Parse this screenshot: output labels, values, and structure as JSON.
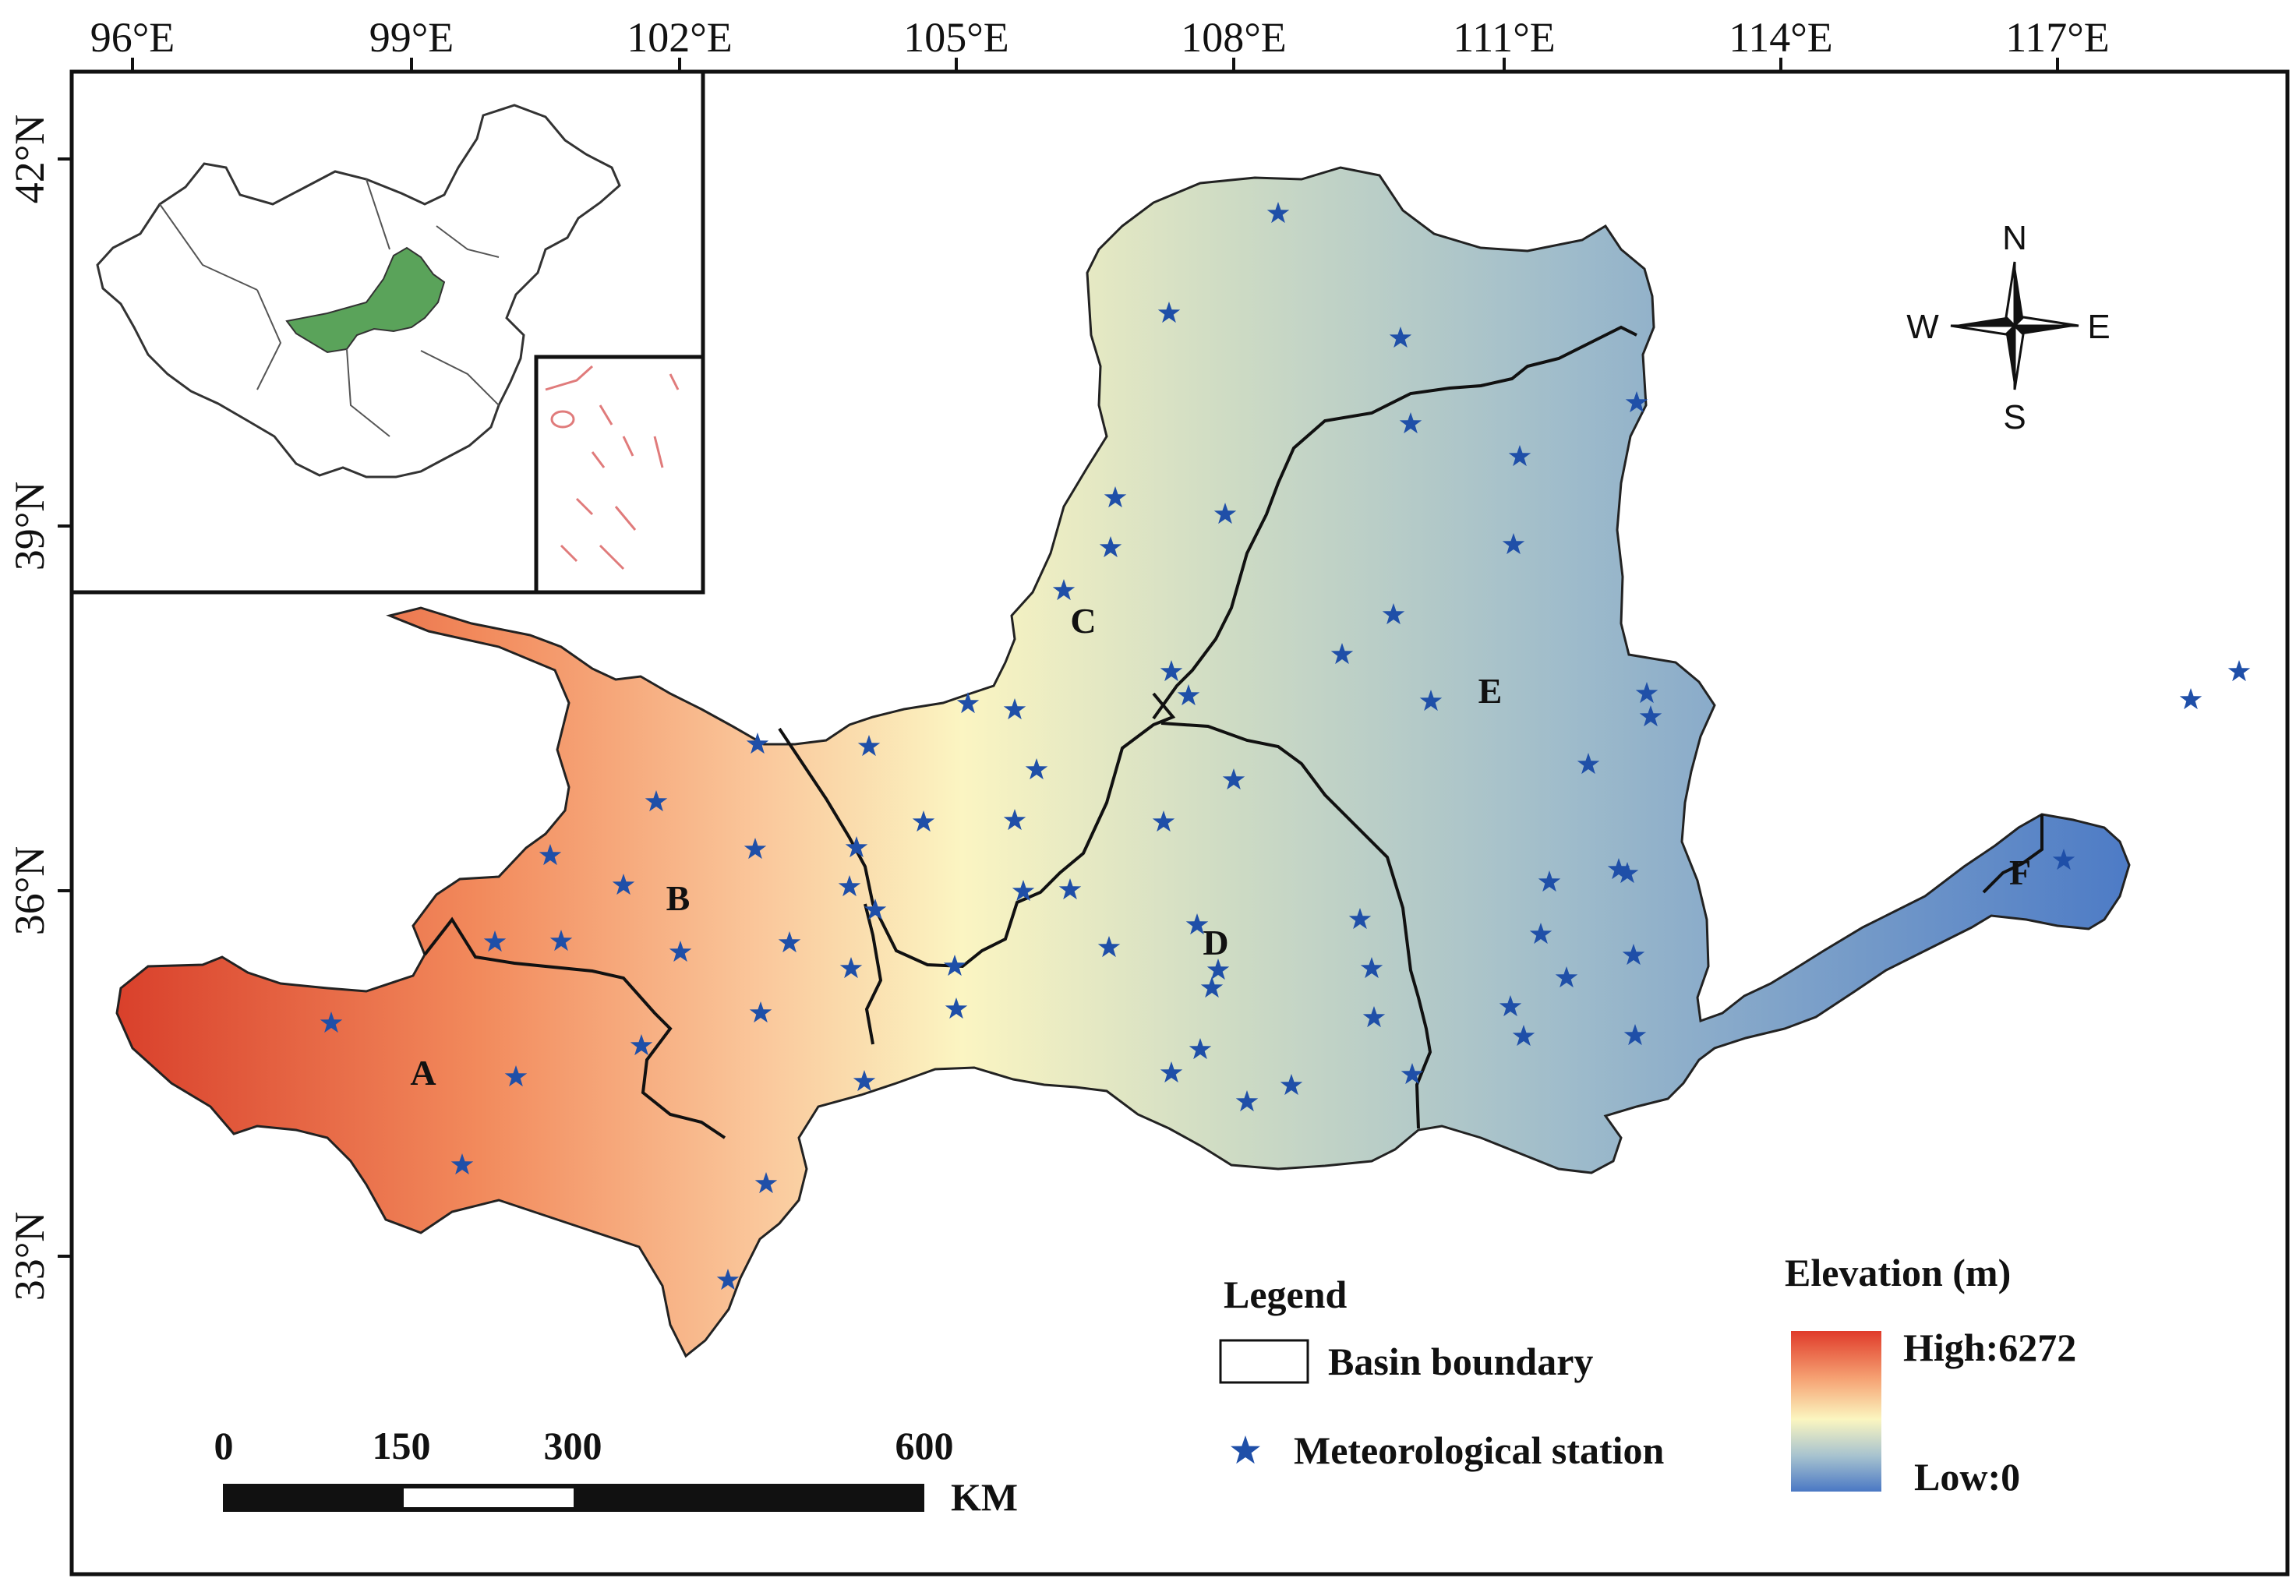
{
  "map": {
    "top_ticks": [
      "96°E",
      "99°E",
      "102°E",
      "105°E",
      "108°E",
      "111°E",
      "114°E",
      "117°E"
    ],
    "left_ticks": [
      "42°N",
      "39°N",
      "36°N",
      "33°N"
    ],
    "regions": [
      "A",
      "B",
      "C",
      "D",
      "E",
      "F"
    ],
    "compass": {
      "n": "N",
      "s": "S",
      "e": "E",
      "w": "W"
    },
    "legend": {
      "title": "Legend",
      "boundary_label": "Basin boundary",
      "station_label": "Meteorological station"
    },
    "elevation": {
      "title": "Elevation (m)",
      "high_label": "High:6272",
      "low_label": "Low:0",
      "high_value": 6272,
      "low_value": 0,
      "colors": [
        "#e03b2a",
        "#f7a070",
        "#fbf6c0",
        "#a6c2cf",
        "#4a78c4"
      ]
    },
    "scale": {
      "labels": [
        "0",
        "150",
        "300",
        "600"
      ],
      "unit": "KM"
    },
    "stations": [
      [
        1640,
        274
      ],
      [
        1500,
        402
      ],
      [
        1797,
        434
      ],
      [
        2100,
        517
      ],
      [
        1810,
        544
      ],
      [
        1431,
        639
      ],
      [
        1572,
        660
      ],
      [
        1425,
        703
      ],
      [
        1365,
        758
      ],
      [
        1950,
        586
      ],
      [
        1942,
        699
      ],
      [
        1788,
        789
      ],
      [
        1722,
        840
      ],
      [
        1503,
        862
      ],
      [
        1525,
        893
      ],
      [
        1242,
        903
      ],
      [
        1302,
        911
      ],
      [
        1836,
        900
      ],
      [
        2113,
        890
      ],
      [
        2118,
        920
      ],
      [
        972,
        955
      ],
      [
        1115,
        958
      ],
      [
        1330,
        988
      ],
      [
        1583,
        1001
      ],
      [
        2038,
        981
      ],
      [
        1302,
        1053
      ],
      [
        842,
        1029
      ],
      [
        1185,
        1055
      ],
      [
        969,
        1090
      ],
      [
        1099,
        1088
      ],
      [
        1493,
        1055
      ],
      [
        1090,
        1138
      ],
      [
        706,
        1098
      ],
      [
        800,
        1136
      ],
      [
        1313,
        1144
      ],
      [
        1373,
        1142
      ],
      [
        2088,
        1121
      ],
      [
        1988,
        1132
      ],
      [
        2077,
        1116
      ],
      [
        1123,
        1168
      ],
      [
        1745,
        1180
      ],
      [
        1536,
        1187
      ],
      [
        1977,
        1199
      ],
      [
        635,
        1209
      ],
      [
        720,
        1208
      ],
      [
        873,
        1222
      ],
      [
        1013,
        1210
      ],
      [
        1092,
        1243
      ],
      [
        1563,
        1245
      ],
      [
        1423,
        1216
      ],
      [
        1760,
        1243
      ],
      [
        2010,
        1255
      ],
      [
        2096,
        1226
      ],
      [
        1555,
        1268
      ],
      [
        976,
        1300
      ],
      [
        1225,
        1240
      ],
      [
        1938,
        1292
      ],
      [
        1763,
        1306
      ],
      [
        2098,
        1329
      ],
      [
        1227,
        1295
      ],
      [
        1955,
        1330
      ],
      [
        425,
        1313
      ],
      [
        823,
        1342
      ],
      [
        1540,
        1347
      ],
      [
        1503,
        1377
      ],
      [
        1657,
        1393
      ],
      [
        1600,
        1414
      ],
      [
        1109,
        1388
      ],
      [
        662,
        1382
      ],
      [
        1812,
        1379
      ],
      [
        593,
        1495
      ],
      [
        983,
        1519
      ],
      [
        934,
        1643
      ],
      [
        2811,
        898
      ],
      [
        2648,
        1104
      ],
      [
        2873,
        862
      ]
    ]
  }
}
